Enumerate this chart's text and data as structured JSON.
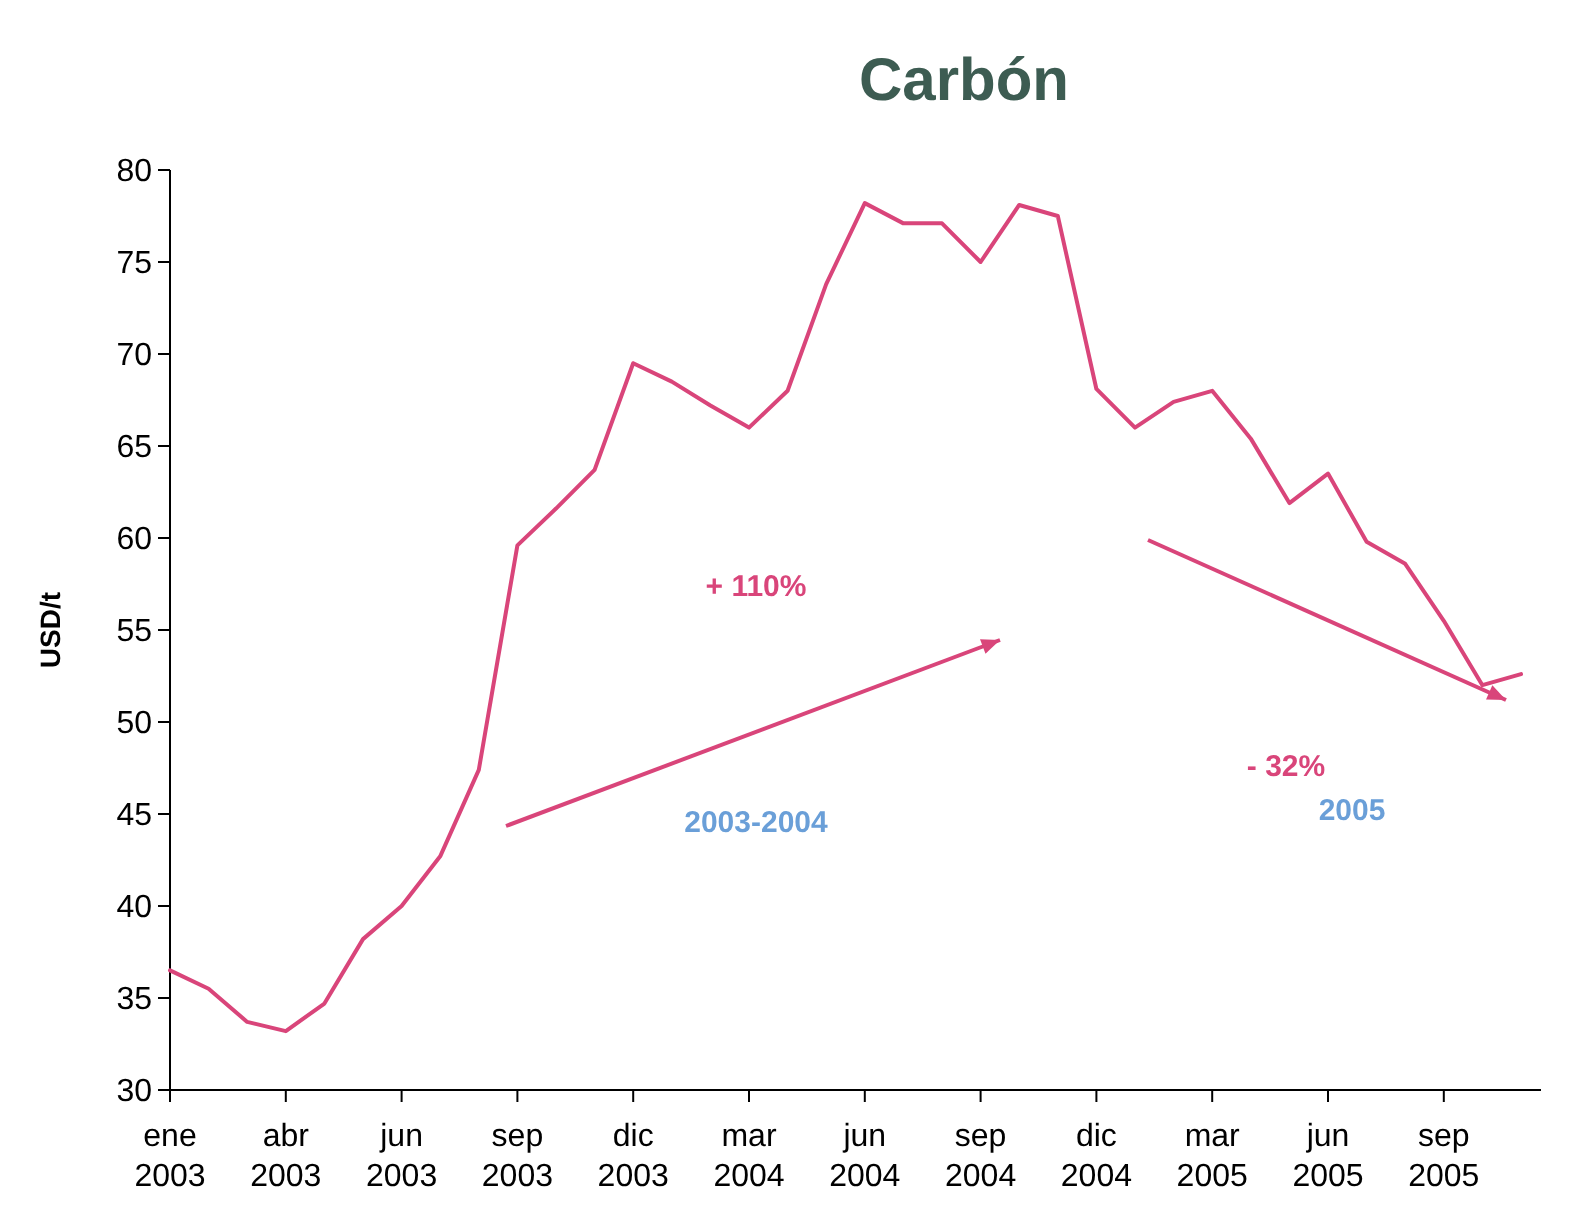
{
  "chart_data": {
    "type": "line",
    "title": "Carbón",
    "ylabel": "USD/t",
    "categories": [
      "ene 2003",
      null,
      null,
      "abr 2003",
      null,
      null,
      "jun 2003",
      null,
      null,
      "sep 2003",
      null,
      null,
      "dic 2003",
      null,
      null,
      "mar 2004",
      null,
      null,
      "jun 2004",
      null,
      null,
      "sep 2004",
      null,
      null,
      "dic 2004",
      null,
      null,
      "mar 2005",
      null,
      null,
      "jun 2005",
      null,
      null,
      "sep 2005",
      null,
      null
    ],
    "series": [
      {
        "color": "#d9457a",
        "values": [
          36.5,
          35.5,
          33.7,
          33.2,
          34.7,
          38.2,
          40.0,
          42.7,
          47.4,
          59.6,
          61.6,
          63.7,
          69.5,
          68.5,
          67.2,
          66.0,
          68.0,
          73.8,
          78.2,
          77.1,
          77.1,
          75.0,
          78.1,
          77.5,
          68.1,
          66.0,
          67.4,
          68.0,
          65.4,
          61.9,
          63.5,
          59.8,
          58.6,
          55.5,
          52.0,
          52.6
        ]
      }
    ],
    "ylim": [
      30,
      80
    ],
    "yticks": [
      30,
      35,
      40,
      45,
      50,
      55,
      60,
      65,
      70,
      75,
      80
    ],
    "annotations": [
      "+ 110%",
      "- 32%",
      "2003-2004",
      "2005"
    ],
    "marker": "none",
    "line_style": "solid",
    "grid": false
  }
}
